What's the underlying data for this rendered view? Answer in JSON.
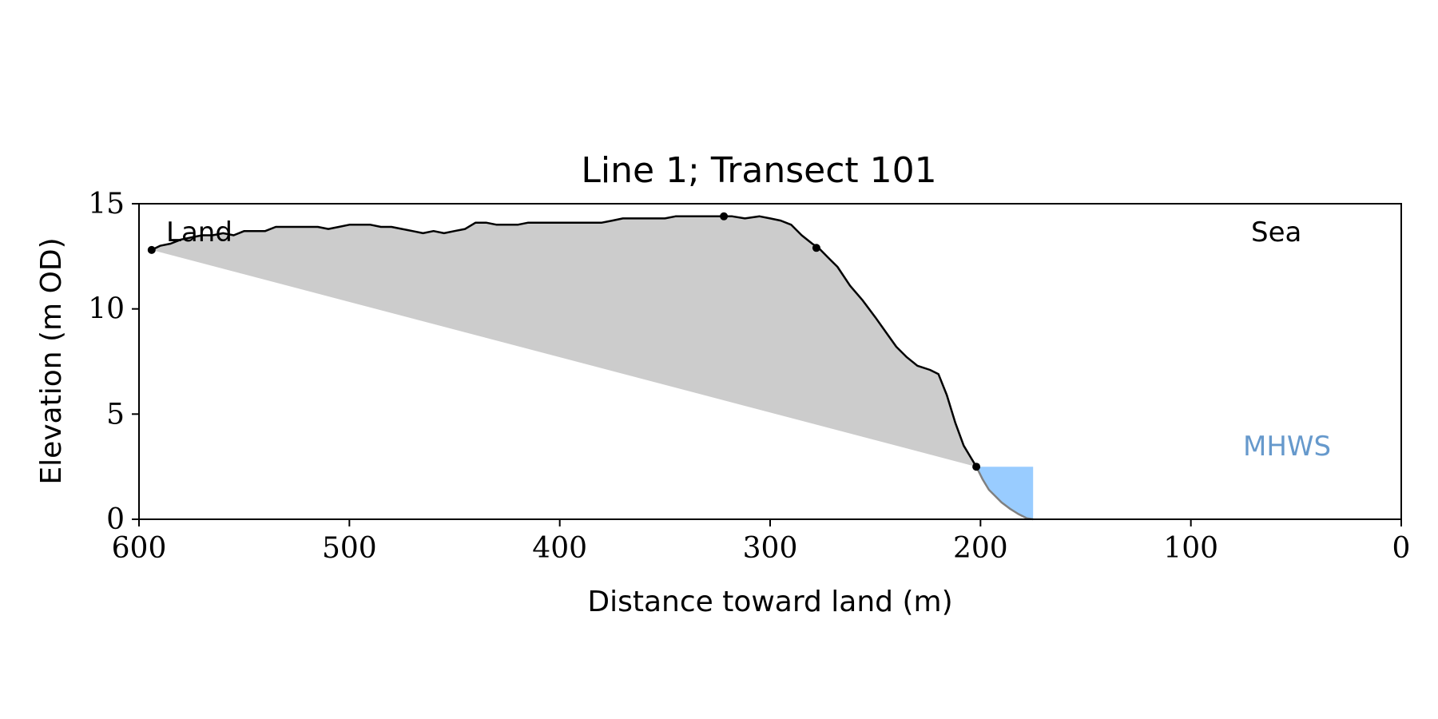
{
  "chart_data": {
    "type": "area",
    "title": "Line 1; Transect 101",
    "xlabel": "Distance toward land (m)",
    "ylabel": "Elevation (m OD)",
    "xlim": [
      600,
      0
    ],
    "ylim": [
      0,
      15
    ],
    "x_reversed": true,
    "xticks": [
      "600",
      "500",
      "400",
      "300",
      "200",
      "100",
      "0"
    ],
    "yticks": [
      "0",
      "5",
      "10",
      "15"
    ],
    "annotations": {
      "land": "Land",
      "sea": "Sea",
      "mhws": "MHWS"
    },
    "colors": {
      "profile": "#000000",
      "lower_profile": "#808080",
      "fill": "#cccccc",
      "mhws_fill": "#99ccff",
      "mhws_text": "#6699cc"
    },
    "series": [
      {
        "kind": "profile",
        "x": [
          594,
          590,
          585,
          580,
          575,
          570,
          565,
          560,
          555,
          550,
          545,
          540,
          535,
          530,
          525,
          520,
          515,
          510,
          505,
          500,
          495,
          490,
          485,
          480,
          475,
          470,
          465,
          460,
          455,
          450,
          445,
          440,
          435,
          430,
          425,
          420,
          415,
          410,
          405,
          400,
          395,
          390,
          385,
          380,
          375,
          370,
          365,
          360,
          355,
          350,
          345,
          340,
          335,
          330,
          325,
          322,
          318,
          312,
          305,
          300,
          295,
          290,
          285,
          280,
          277,
          272,
          268,
          262,
          256,
          250,
          245,
          240,
          235,
          230,
          224,
          220,
          216,
          212,
          208,
          205,
          202
        ],
        "y": [
          12.8,
          13.0,
          13.1,
          13.3,
          13.4,
          13.5,
          13.5,
          13.6,
          13.5,
          13.7,
          13.7,
          13.7,
          13.9,
          13.9,
          13.9,
          13.9,
          13.9,
          13.8,
          13.9,
          14.0,
          14.0,
          14.0,
          13.9,
          13.9,
          13.8,
          13.7,
          13.6,
          13.7,
          13.6,
          13.7,
          13.8,
          14.1,
          14.1,
          14.0,
          14.0,
          14.0,
          14.1,
          14.1,
          14.1,
          14.1,
          14.1,
          14.1,
          14.1,
          14.1,
          14.2,
          14.3,
          14.3,
          14.3,
          14.3,
          14.3,
          14.4,
          14.4,
          14.4,
          14.4,
          14.4,
          14.4,
          14.4,
          14.3,
          14.4,
          14.3,
          14.2,
          14.0,
          13.5,
          13.1,
          12.9,
          12.4,
          12.0,
          11.1,
          10.4,
          9.6,
          8.9,
          8.2,
          7.7,
          7.3,
          7.1,
          6.9,
          5.9,
          4.6,
          3.5,
          3.0,
          2.5
        ]
      },
      {
        "kind": "lower_profile",
        "x": [
          202,
          199,
          196,
          193,
          190,
          186,
          182,
          178,
          175
        ],
        "y": [
          2.5,
          1.9,
          1.4,
          1.1,
          0.8,
          0.5,
          0.25,
          0.05,
          0.0
        ]
      }
    ],
    "points": [
      {
        "x": 594,
        "y": 12.8
      },
      {
        "x": 322,
        "y": 14.4
      },
      {
        "x": 278,
        "y": 12.9
      },
      {
        "x": 202,
        "y": 2.5
      }
    ],
    "mhws": {
      "level": 2.5,
      "x_from": 202,
      "x_to": 175
    }
  }
}
